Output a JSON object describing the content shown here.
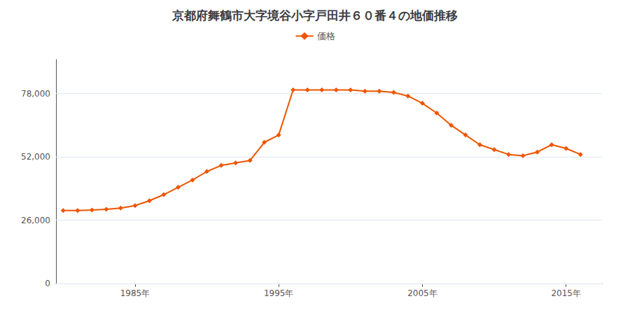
{
  "chart_data": {
    "type": "line",
    "title": "京都府舞鶴市大字境谷小字戸田井６０番４の地価推移",
    "x": [
      1980,
      1981,
      1982,
      1983,
      1984,
      1985,
      1986,
      1987,
      1988,
      1989,
      1990,
      1991,
      1992,
      1993,
      1994,
      1995,
      1996,
      1997,
      1998,
      1999,
      2000,
      2001,
      2002,
      2003,
      2004,
      2005,
      2006,
      2007,
      2008,
      2009,
      2010,
      2011,
      2012,
      2013,
      2014,
      2015,
      2016
    ],
    "series": [
      {
        "name": "価格",
        "color": "#ee5500",
        "marker": "diamond",
        "values": [
          30000,
          30000,
          30200,
          30500,
          31000,
          32000,
          34000,
          36500,
          39500,
          42500,
          46000,
          48500,
          49500,
          50500,
          58000,
          61000,
          79500,
          79500,
          79500,
          79500,
          79500,
          79000,
          79000,
          78500,
          77000,
          74000,
          70000,
          65000,
          61000,
          57000,
          55000,
          53000,
          52500,
          54000,
          57000,
          55500,
          53000
        ]
      }
    ],
    "xlim": [
      1979.5,
      2017.5
    ],
    "xticks": [
      {
        "value": 1985,
        "label": "1985年"
      },
      {
        "value": 1995,
        "label": "1995年"
      },
      {
        "value": 2005,
        "label": "2005年"
      },
      {
        "value": 2015,
        "label": "2015年"
      }
    ],
    "ylim": [
      0,
      92000
    ],
    "yticks": [
      0,
      {
        "value": 26000,
        "label": "26,000"
      },
      {
        "value": 52000,
        "label": "52,000"
      },
      {
        "value": 78000,
        "label": "78,000"
      }
    ],
    "grid": "y",
    "legend": "top"
  }
}
